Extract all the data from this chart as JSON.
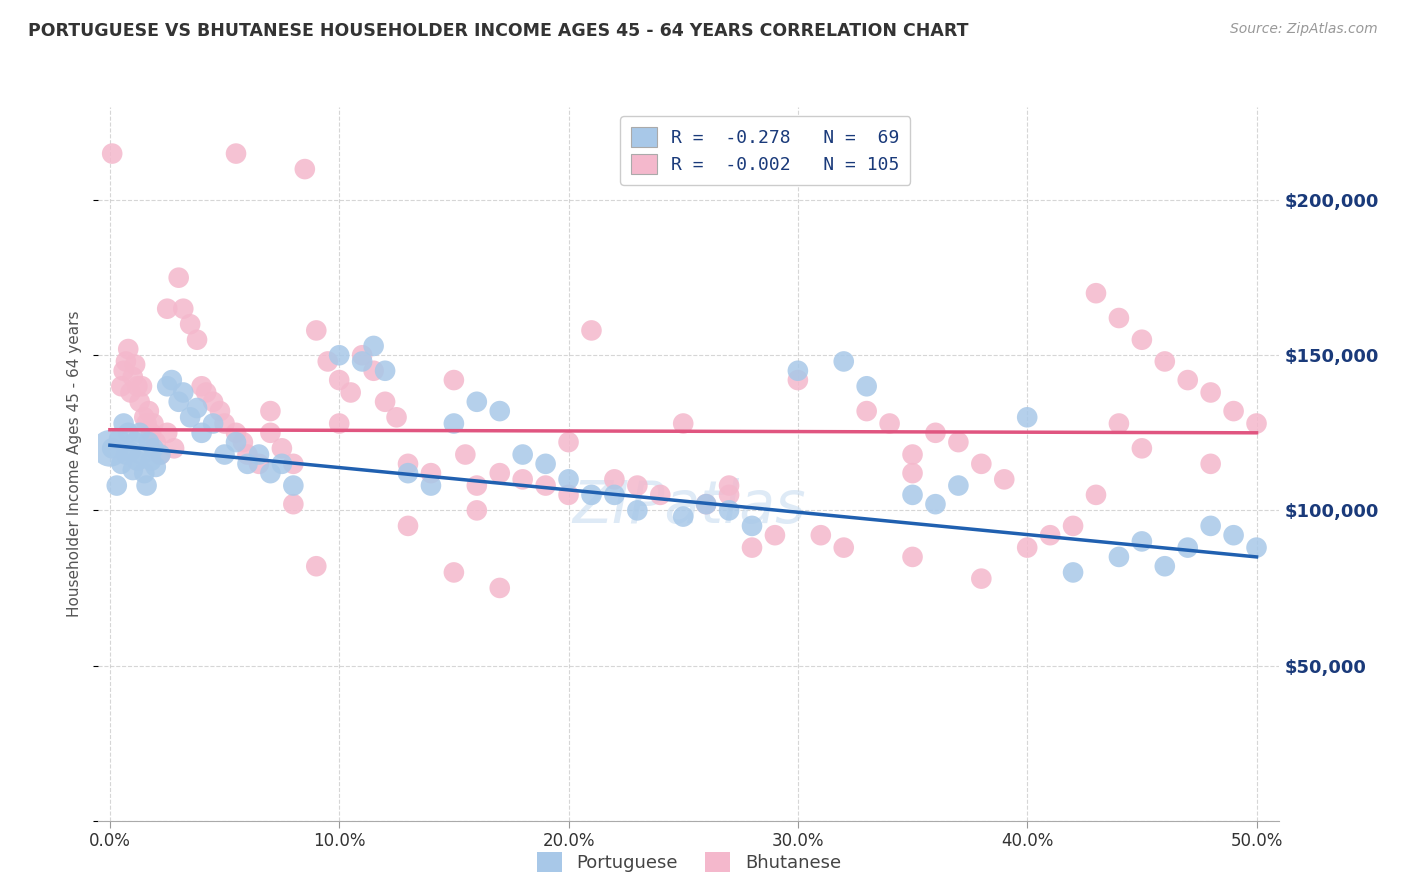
{
  "title": "PORTUGUESE VS BHUTANESE HOUSEHOLDER INCOME AGES 45 - 64 YEARS CORRELATION CHART",
  "source": "Source: ZipAtlas.com",
  "ylabel": "Householder Income Ages 45 - 64 years",
  "xlabel_ticks": [
    "0.0%",
    "10.0%",
    "20.0%",
    "30.0%",
    "40.0%",
    "50.0%"
  ],
  "xlabel_vals": [
    0.0,
    0.1,
    0.2,
    0.3,
    0.4,
    0.5
  ],
  "ytick_labels": [
    "$50,000",
    "$100,000",
    "$150,000",
    "$200,000"
  ],
  "ytick_vals": [
    50000,
    100000,
    150000,
    200000
  ],
  "ylim": [
    0,
    230000
  ],
  "xlim": [
    -0.005,
    0.51
  ],
  "legend_blue_r": "-0.278",
  "legend_blue_n": "69",
  "legend_pink_r": "-0.002",
  "legend_pink_n": "105",
  "blue_color": "#a8c8e8",
  "pink_color": "#f4b8cc",
  "blue_line_color": "#2060b0",
  "pink_line_color": "#e05580",
  "text_color": "#1a3a7a",
  "background_color": "#ffffff",
  "grid_color": "#cccccc",
  "blue_scatter": [
    [
      0.001,
      120000
    ],
    [
      0.003,
      108000
    ],
    [
      0.004,
      123000
    ],
    [
      0.005,
      115000
    ],
    [
      0.006,
      128000
    ],
    [
      0.007,
      118000
    ],
    [
      0.008,
      125000
    ],
    [
      0.009,
      119000
    ],
    [
      0.01,
      113000
    ],
    [
      0.011,
      122000
    ],
    [
      0.012,
      116000
    ],
    [
      0.013,
      125000
    ],
    [
      0.014,
      118000
    ],
    [
      0.015,
      112000
    ],
    [
      0.016,
      108000
    ],
    [
      0.017,
      122000
    ],
    [
      0.018,
      116000
    ],
    [
      0.019,
      120000
    ],
    [
      0.02,
      114000
    ],
    [
      0.022,
      118000
    ],
    [
      0.025,
      140000
    ],
    [
      0.027,
      142000
    ],
    [
      0.03,
      135000
    ],
    [
      0.032,
      138000
    ],
    [
      0.035,
      130000
    ],
    [
      0.038,
      133000
    ],
    [
      0.04,
      125000
    ],
    [
      0.045,
      128000
    ],
    [
      0.05,
      118000
    ],
    [
      0.055,
      122000
    ],
    [
      0.06,
      115000
    ],
    [
      0.065,
      118000
    ],
    [
      0.07,
      112000
    ],
    [
      0.075,
      115000
    ],
    [
      0.08,
      108000
    ],
    [
      0.1,
      150000
    ],
    [
      0.11,
      148000
    ],
    [
      0.115,
      153000
    ],
    [
      0.12,
      145000
    ],
    [
      0.13,
      112000
    ],
    [
      0.14,
      108000
    ],
    [
      0.15,
      128000
    ],
    [
      0.16,
      135000
    ],
    [
      0.17,
      132000
    ],
    [
      0.18,
      118000
    ],
    [
      0.19,
      115000
    ],
    [
      0.2,
      110000
    ],
    [
      0.21,
      105000
    ],
    [
      0.22,
      105000
    ],
    [
      0.23,
      100000
    ],
    [
      0.25,
      98000
    ],
    [
      0.26,
      102000
    ],
    [
      0.27,
      100000
    ],
    [
      0.28,
      95000
    ],
    [
      0.3,
      145000
    ],
    [
      0.32,
      148000
    ],
    [
      0.33,
      140000
    ],
    [
      0.35,
      105000
    ],
    [
      0.36,
      102000
    ],
    [
      0.37,
      108000
    ],
    [
      0.4,
      130000
    ],
    [
      0.42,
      80000
    ],
    [
      0.44,
      85000
    ],
    [
      0.45,
      90000
    ],
    [
      0.46,
      82000
    ],
    [
      0.47,
      88000
    ],
    [
      0.48,
      95000
    ],
    [
      0.49,
      92000
    ],
    [
      0.5,
      88000
    ]
  ],
  "pink_scatter": [
    [
      0.001,
      215000
    ],
    [
      0.005,
      140000
    ],
    [
      0.006,
      145000
    ],
    [
      0.007,
      148000
    ],
    [
      0.008,
      152000
    ],
    [
      0.009,
      138000
    ],
    [
      0.01,
      143000
    ],
    [
      0.011,
      147000
    ],
    [
      0.012,
      140000
    ],
    [
      0.013,
      135000
    ],
    [
      0.014,
      140000
    ],
    [
      0.015,
      130000
    ],
    [
      0.016,
      128000
    ],
    [
      0.017,
      132000
    ],
    [
      0.018,
      125000
    ],
    [
      0.019,
      128000
    ],
    [
      0.02,
      122000
    ],
    [
      0.022,
      118000
    ],
    [
      0.025,
      125000
    ],
    [
      0.028,
      120000
    ],
    [
      0.03,
      175000
    ],
    [
      0.032,
      165000
    ],
    [
      0.035,
      160000
    ],
    [
      0.038,
      155000
    ],
    [
      0.04,
      140000
    ],
    [
      0.042,
      138000
    ],
    [
      0.045,
      135000
    ],
    [
      0.048,
      132000
    ],
    [
      0.05,
      128000
    ],
    [
      0.055,
      125000
    ],
    [
      0.058,
      122000
    ],
    [
      0.06,
      118000
    ],
    [
      0.065,
      115000
    ],
    [
      0.07,
      125000
    ],
    [
      0.075,
      120000
    ],
    [
      0.08,
      115000
    ],
    [
      0.085,
      210000
    ],
    [
      0.09,
      158000
    ],
    [
      0.095,
      148000
    ],
    [
      0.1,
      142000
    ],
    [
      0.105,
      138000
    ],
    [
      0.11,
      150000
    ],
    [
      0.115,
      145000
    ],
    [
      0.12,
      135000
    ],
    [
      0.125,
      130000
    ],
    [
      0.13,
      115000
    ],
    [
      0.14,
      112000
    ],
    [
      0.15,
      142000
    ],
    [
      0.155,
      118000
    ],
    [
      0.16,
      108000
    ],
    [
      0.17,
      112000
    ],
    [
      0.18,
      110000
    ],
    [
      0.19,
      108000
    ],
    [
      0.2,
      105000
    ],
    [
      0.21,
      158000
    ],
    [
      0.22,
      110000
    ],
    [
      0.23,
      108000
    ],
    [
      0.24,
      105000
    ],
    [
      0.25,
      128000
    ],
    [
      0.26,
      102000
    ],
    [
      0.27,
      108000
    ],
    [
      0.28,
      88000
    ],
    [
      0.29,
      92000
    ],
    [
      0.3,
      142000
    ],
    [
      0.31,
      92000
    ],
    [
      0.32,
      88000
    ],
    [
      0.33,
      132000
    ],
    [
      0.34,
      128000
    ],
    [
      0.35,
      118000
    ],
    [
      0.36,
      125000
    ],
    [
      0.37,
      122000
    ],
    [
      0.38,
      115000
    ],
    [
      0.39,
      110000
    ],
    [
      0.4,
      88000
    ],
    [
      0.41,
      92000
    ],
    [
      0.42,
      95000
    ],
    [
      0.43,
      170000
    ],
    [
      0.44,
      162000
    ],
    [
      0.45,
      155000
    ],
    [
      0.46,
      148000
    ],
    [
      0.47,
      142000
    ],
    [
      0.48,
      138000
    ],
    [
      0.49,
      132000
    ],
    [
      0.5,
      128000
    ],
    [
      0.055,
      215000
    ],
    [
      0.025,
      165000
    ],
    [
      0.07,
      132000
    ],
    [
      0.08,
      102000
    ],
    [
      0.13,
      95000
    ],
    [
      0.15,
      80000
    ],
    [
      0.17,
      75000
    ],
    [
      0.35,
      85000
    ],
    [
      0.38,
      78000
    ],
    [
      0.1,
      128000
    ],
    [
      0.09,
      82000
    ],
    [
      0.16,
      100000
    ],
    [
      0.2,
      122000
    ],
    [
      0.44,
      128000
    ],
    [
      0.43,
      105000
    ],
    [
      0.45,
      120000
    ],
    [
      0.48,
      115000
    ],
    [
      0.35,
      112000
    ],
    [
      0.27,
      105000
    ]
  ],
  "blue_trendline": [
    [
      0.0,
      121000
    ],
    [
      0.5,
      85000
    ]
  ],
  "pink_trendline": [
    [
      0.0,
      126000
    ],
    [
      0.5,
      125000
    ]
  ],
  "watermark": "ZIPatlas",
  "watermark_color": "#c8dcf0"
}
